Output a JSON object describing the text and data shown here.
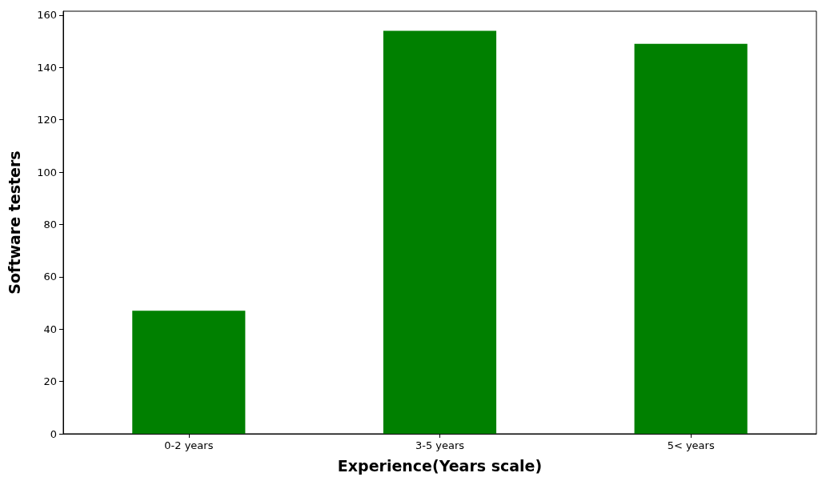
{
  "chart_data": {
    "type": "bar",
    "xlabel": "Experience(Years scale)",
    "ylabel": "Software testers",
    "categories": [
      "0-2 years",
      "3-5 years",
      "5< years"
    ],
    "values": [
      47,
      154,
      149
    ],
    "color": "#008000",
    "ylim": [
      0,
      161.5
    ],
    "yticks": [
      0,
      20,
      40,
      60,
      80,
      100,
      120,
      140,
      160
    ],
    "grid": false
  }
}
